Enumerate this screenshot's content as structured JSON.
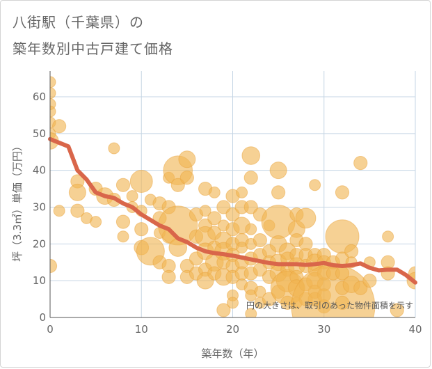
{
  "header": {
    "title_line1": "八街駅（千葉県）の",
    "title_line2": "築年数別中古戸建て価格"
  },
  "chart_data": {
    "type": "scatter",
    "title": "八街駅（千葉県）の築年数別中古戸建て価格",
    "xlabel": "築年数（年）",
    "ylabel": "坪（3.3㎡）単価（万円）",
    "xlim": [
      0,
      40
    ],
    "ylim": [
      0,
      67
    ],
    "xticks": [
      0,
      10,
      20,
      30,
      40
    ],
    "yticks": [
      0,
      10,
      20,
      30,
      40,
      50,
      60
    ],
    "grid": true,
    "note": "円の大きさは、取引のあった物件面積を示す",
    "colors": {
      "bubble": "#f0b552",
      "trend": "#d9664a",
      "grid": "#c5d5e4",
      "text": "#666666"
    },
    "bubbles": [
      [
        0,
        64,
        1
      ],
      [
        0,
        61,
        1
      ],
      [
        0,
        58,
        1
      ],
      [
        0,
        56,
        1
      ],
      [
        0,
        53,
        1
      ],
      [
        0,
        50,
        1
      ],
      [
        0,
        48,
        1.5
      ],
      [
        0,
        14,
        1.2
      ],
      [
        1,
        52,
        1.2
      ],
      [
        1,
        29,
        1
      ],
      [
        3,
        37,
        1.2
      ],
      [
        3,
        34,
        1.5
      ],
      [
        3,
        29,
        1.2
      ],
      [
        4,
        27,
        1
      ],
      [
        5,
        35,
        1.2
      ],
      [
        5,
        26,
        1
      ],
      [
        6,
        33,
        1.5
      ],
      [
        7,
        46,
        1
      ],
      [
        7,
        32,
        1.2
      ],
      [
        8,
        36,
        1.2
      ],
      [
        8,
        26,
        1.2
      ],
      [
        8,
        22,
        1
      ],
      [
        9,
        33,
        1
      ],
      [
        9,
        30,
        1
      ],
      [
        10,
        37,
        2
      ],
      [
        10,
        29,
        1
      ],
      [
        10,
        24,
        1.2
      ],
      [
        10,
        19,
        1.3
      ],
      [
        11,
        18,
        2.5
      ],
      [
        11,
        32,
        1
      ],
      [
        12,
        31,
        1.2
      ],
      [
        12,
        27,
        1.2
      ],
      [
        12,
        23,
        1
      ],
      [
        12,
        15,
        1.2
      ],
      [
        13,
        38,
        1
      ],
      [
        13,
        30,
        1.2
      ],
      [
        13,
        22,
        1.2
      ],
      [
        13,
        14,
        1.2
      ],
      [
        13,
        11,
        1.2
      ],
      [
        14,
        40,
        2.6
      ],
      [
        14,
        36,
        1.2
      ],
      [
        14,
        25,
        3.5
      ],
      [
        14,
        19,
        1.6
      ],
      [
        15,
        43,
        1.5
      ],
      [
        15,
        38,
        1.2
      ],
      [
        15,
        14,
        1.2
      ],
      [
        15,
        11,
        1.2
      ],
      [
        16,
        28,
        1.2
      ],
      [
        16,
        22,
        1.2
      ],
      [
        16,
        16,
        1.2
      ],
      [
        16,
        12,
        1.2
      ],
      [
        17,
        35,
        1.2
      ],
      [
        17,
        29,
        1
      ],
      [
        17,
        25,
        1.2
      ],
      [
        17,
        22,
        1.8
      ],
      [
        17,
        18,
        1.5
      ],
      [
        17,
        13,
        1.2
      ],
      [
        17,
        10,
        1.5
      ],
      [
        18,
        34,
        1
      ],
      [
        18,
        27,
        1.2
      ],
      [
        18,
        23,
        1.2
      ],
      [
        18,
        19,
        1.2
      ],
      [
        18,
        15,
        1.6
      ],
      [
        18,
        12,
        1.2
      ],
      [
        19,
        30,
        1.2
      ],
      [
        19,
        25,
        1
      ],
      [
        19,
        21,
        1.5
      ],
      [
        19,
        18,
        1.6
      ],
      [
        19,
        15,
        1.2
      ],
      [
        19,
        11,
        1.5
      ],
      [
        19,
        2,
        1.2
      ],
      [
        20,
        33,
        1.2
      ],
      [
        20,
        28,
        1.2
      ],
      [
        20,
        24,
        1.2
      ],
      [
        20,
        20,
        1.2
      ],
      [
        20,
        17,
        1.2
      ],
      [
        20,
        14,
        1.2
      ],
      [
        20,
        11,
        1.2
      ],
      [
        20,
        6,
        1
      ],
      [
        20,
        4,
        1
      ],
      [
        21,
        34,
        1
      ],
      [
        21,
        30,
        1.2
      ],
      [
        21,
        25,
        1.5
      ],
      [
        21,
        21,
        1.2
      ],
      [
        21,
        19,
        1
      ],
      [
        21,
        15,
        1.2
      ],
      [
        21,
        12,
        1.2
      ],
      [
        21,
        9,
        1
      ],
      [
        22,
        44,
        1.6
      ],
      [
        22,
        38,
        1.2
      ],
      [
        22,
        30,
        1.2
      ],
      [
        22,
        24,
        1
      ],
      [
        22,
        20,
        1
      ],
      [
        22,
        16,
        1.2
      ],
      [
        22,
        12,
        1.2
      ],
      [
        22,
        8,
        1.2
      ],
      [
        22,
        6,
        1
      ],
      [
        22,
        1,
        1
      ],
      [
        23,
        28,
        1.2
      ],
      [
        23,
        21,
        1.2
      ],
      [
        23,
        17,
        1.2
      ],
      [
        23,
        13,
        1.2
      ],
      [
        23,
        7,
        1
      ],
      [
        23,
        4,
        1
      ],
      [
        24,
        25,
        1
      ],
      [
        24,
        18,
        1.2
      ],
      [
        24,
        15,
        1.2
      ],
      [
        24,
        11,
        1.2
      ],
      [
        24,
        5,
        1.2
      ],
      [
        25,
        40,
        1.5
      ],
      [
        25,
        34,
        1.2
      ],
      [
        25,
        26,
        3
      ],
      [
        25,
        20,
        1.5
      ],
      [
        25,
        15,
        1.5
      ],
      [
        25,
        12,
        1.5
      ],
      [
        25,
        7,
        1.2
      ],
      [
        26,
        18,
        1.5
      ],
      [
        26,
        16,
        1.2
      ],
      [
        26,
        13,
        1.2
      ],
      [
        26,
        10,
        2
      ],
      [
        26,
        8,
        3
      ],
      [
        26,
        4,
        1.2
      ],
      [
        27,
        28,
        1.2
      ],
      [
        27,
        24,
        1.5
      ],
      [
        27,
        21,
        1.2
      ],
      [
        27,
        17,
        1.2
      ],
      [
        27,
        14,
        1.5
      ],
      [
        27,
        11,
        1.2
      ],
      [
        27,
        8,
        1.5
      ],
      [
        27,
        4,
        1
      ],
      [
        28,
        27,
        1.8
      ],
      [
        28,
        20,
        1.2
      ],
      [
        28,
        17,
        1.2
      ],
      [
        28,
        14,
        1.2
      ],
      [
        28,
        9,
        1.2
      ],
      [
        28,
        5,
        1.2
      ],
      [
        29,
        36,
        1
      ],
      [
        29,
        17,
        1.2
      ],
      [
        29,
        15,
        1.5
      ],
      [
        29,
        13,
        1.2
      ],
      [
        29,
        10,
        1.5
      ],
      [
        29,
        7,
        1.2
      ],
      [
        29,
        5,
        1.2
      ],
      [
        30,
        17,
        1.2
      ],
      [
        30,
        15,
        1.2
      ],
      [
        30,
        12,
        1.2
      ],
      [
        30,
        9,
        1.2
      ],
      [
        30,
        6,
        1.2
      ],
      [
        30,
        3,
        1.2
      ],
      [
        31,
        3,
        7.5
      ],
      [
        31,
        15,
        1.2
      ],
      [
        31,
        12,
        1.2
      ],
      [
        32,
        34,
        1.2
      ],
      [
        32,
        22,
        3
      ],
      [
        32,
        16,
        1.2
      ],
      [
        32,
        12,
        1.2
      ],
      [
        32,
        8,
        1.2
      ],
      [
        32,
        4,
        1.2
      ],
      [
        33,
        18,
        1.2
      ],
      [
        33,
        15,
        1
      ],
      [
        33,
        9,
        1.5
      ],
      [
        34,
        42,
        1.2
      ],
      [
        34,
        8,
        1.2
      ],
      [
        35,
        15,
        1
      ],
      [
        35,
        10,
        1.2
      ],
      [
        37,
        22,
        1
      ],
      [
        37,
        15,
        1.2
      ],
      [
        37,
        12,
        1.2
      ],
      [
        38,
        2,
        1.2
      ],
      [
        40,
        12,
        1.2
      ],
      [
        40,
        10,
        1.5
      ]
    ],
    "trend": {
      "x": [
        0,
        1,
        2,
        3,
        4,
        5,
        6,
        7,
        8,
        9,
        10,
        11,
        12,
        13,
        14,
        15,
        16,
        17,
        18,
        19,
        20,
        21,
        22,
        23,
        24,
        25,
        26,
        27,
        28,
        29,
        30,
        31,
        32,
        33,
        34,
        35,
        36,
        37,
        38,
        39,
        40
      ],
      "y": [
        48.5,
        47.5,
        46.5,
        40,
        37.5,
        34,
        33,
        32.5,
        31,
        30,
        28,
        26.5,
        25,
        24,
        21.5,
        20.5,
        19,
        18,
        17.5,
        17.2,
        16.8,
        16.3,
        15.8,
        15.3,
        14.8,
        14.5,
        14.5,
        14.5,
        14.3,
        14.5,
        14.8,
        14.2,
        14,
        14.2,
        14.7,
        13.5,
        12.8,
        13,
        13,
        11.5,
        9.5
      ]
    }
  }
}
